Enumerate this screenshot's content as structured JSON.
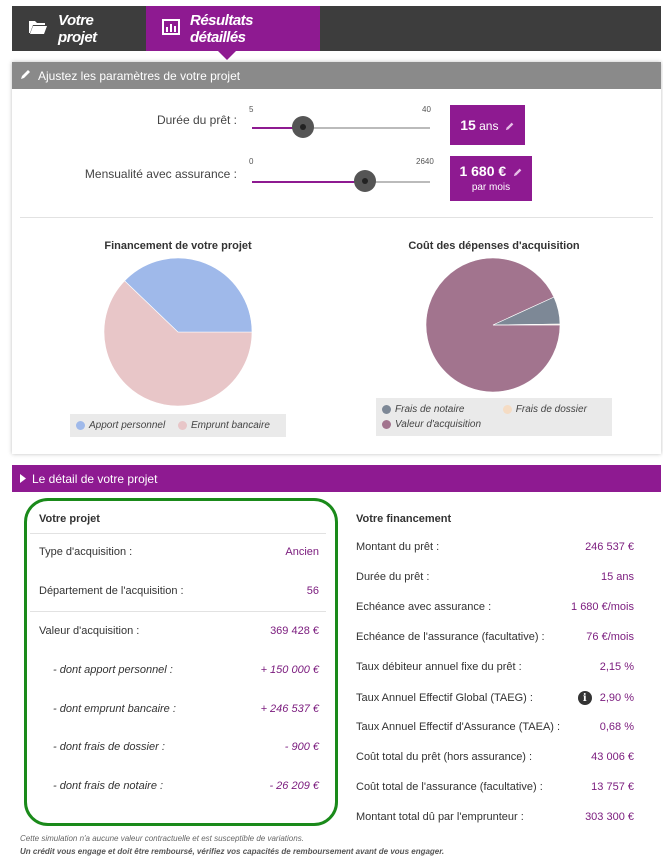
{
  "tabs": [
    {
      "label": "Votre projet",
      "icon": "folder-open-icon"
    },
    {
      "label": "Résultats détaillés",
      "icon": "bar-chart-icon",
      "active": true
    }
  ],
  "params": {
    "title": "Ajustez les paramètres de votre projet",
    "duree": {
      "label": "Durée du prêt :",
      "min": "5",
      "max": "40",
      "value_num": "15",
      "value_unit": "ans",
      "fraction": 0.286
    },
    "mensualite": {
      "label": "Mensualité avec assurance :",
      "min": "0",
      "max": "2640",
      "value_num": "1 680 €",
      "value_sub": "par mois",
      "fraction": 0.636
    }
  },
  "charts": {
    "financement": {
      "title": "Financement de votre projet",
      "legend": [
        "Apport personnel",
        "Emprunt bancaire"
      ]
    },
    "cout": {
      "title": "Coût des dépenses d'acquisition",
      "legend": [
        "Frais de notaire",
        "Frais de dossier",
        "Valeur d'acquisition"
      ]
    }
  },
  "chart_data": [
    {
      "type": "pie",
      "title": "Financement de votre projet",
      "categories": [
        "Apport personnel",
        "Emprunt bancaire"
      ],
      "values": [
        150000,
        246537
      ],
      "colors": [
        "#9fb9ea",
        "#e8c6c8"
      ]
    },
    {
      "type": "pie",
      "title": "Coût des dépenses d'acquisition",
      "categories": [
        "Frais de notaire",
        "Frais de dossier",
        "Valeur d'acquisition"
      ],
      "values": [
        26209,
        900,
        369428
      ],
      "colors": [
        "#7d8896",
        "#f5dcc4",
        "#a2748e"
      ]
    }
  ],
  "detail": {
    "title": "Le détail de votre projet",
    "projet": {
      "title": "Votre projet",
      "type_label": "Type d'acquisition :",
      "type_value": "Ancien",
      "dept_label": "Département de l'acquisition :",
      "dept_value": "56",
      "valeur_label": "Valeur d'acquisition :",
      "valeur_value": "369 428 €",
      "apport_label": "- dont apport personnel :",
      "apport_value": "+ 150 000 €",
      "emprunt_label": "- dont emprunt bancaire :",
      "emprunt_value": "+ 246 537 €",
      "dossier_label": "- dont frais de dossier :",
      "dossier_value": "- 900 €",
      "notaire_label": "- dont frais de notaire :",
      "notaire_value": "- 26 209 €"
    },
    "financement": {
      "title": "Votre financement",
      "rows": [
        {
          "label": "Montant du prêt :",
          "value": "246 537 €"
        },
        {
          "label": "Durée du prêt :",
          "value": "15 ans"
        },
        {
          "label": "Echéance avec assurance :",
          "value": "1 680 €/mois"
        },
        {
          "label": "Echéance de l'assurance (facultative) :",
          "value": "76 €/mois"
        },
        {
          "label": "Taux débiteur annuel fixe du prêt :",
          "value": "2,15 %"
        },
        {
          "label": "Taux Annuel Effectif Global (TAEG) :",
          "value": "2,90 %"
        },
        {
          "label": "Taux Annuel Effectif d'Assurance (TAEA) :",
          "value": "0,68 %"
        },
        {
          "label": "Coût total du prêt (hors assurance) :",
          "value": "43 006 €"
        },
        {
          "label": "Coût total de l'assurance (facultative) :",
          "value": "13 757 €"
        },
        {
          "label": "Montant total dû par l'emprunteur :",
          "value": "303 300 €"
        }
      ]
    },
    "footnote1": "Cette simulation n'a aucune valeur contractuelle et est susceptible de variations.",
    "footnote2": "Un crédit vous engage et doit être remboursé, vérifiez vos capacités de remboursement avant de vous engager."
  }
}
